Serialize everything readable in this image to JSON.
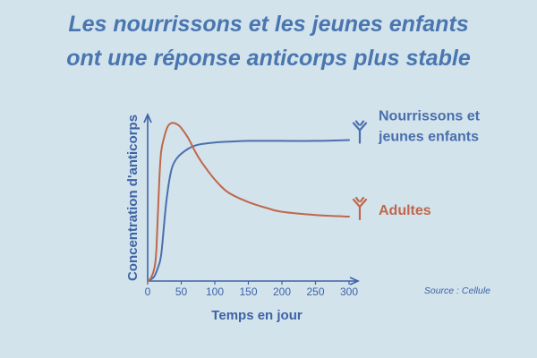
{
  "colors": {
    "background": "#d2e3ec",
    "title": "#4a76b0",
    "axis": "#3e63a6",
    "infants": "#4a6fae",
    "adults": "#c0674a"
  },
  "title_lines": [
    "Les nourrissons et les jeunes enfants",
    "ont une réponse anticorps plus stable"
  ],
  "source": "Source : Cellule",
  "legend_icon": "antibody-icon",
  "chart_data": {
    "type": "line",
    "xlabel": "Temps en jour",
    "ylabel": "Concentration d'anticorps",
    "xlim": [
      0,
      320
    ],
    "ylim": [
      0,
      1
    ],
    "x_ticks": [
      0,
      50,
      100,
      150,
      200,
      250,
      300
    ],
    "grid": false,
    "legend_placement": "right, at line ends",
    "series": [
      {
        "name": "Nourrissons et jeunes enfants",
        "label_lines": [
          "Nourrissons et",
          "jeunes enfants"
        ],
        "color": "#4a6fae",
        "x": [
          0,
          5,
          10,
          15,
          20,
          25,
          28,
          32,
          36,
          40,
          45,
          50,
          60,
          70,
          80,
          100,
          120,
          150,
          200,
          250,
          300
        ],
        "y": [
          0.0,
          0.01,
          0.03,
          0.08,
          0.16,
          0.38,
          0.5,
          0.62,
          0.7,
          0.74,
          0.77,
          0.79,
          0.82,
          0.84,
          0.85,
          0.86,
          0.865,
          0.87,
          0.87,
          0.87,
          0.875
        ]
      },
      {
        "name": "Adultes",
        "label_lines": [
          "Adultes"
        ],
        "color": "#c0674a",
        "x": [
          0,
          5,
          10,
          13,
          17,
          20,
          25,
          30,
          35,
          40,
          45,
          50,
          60,
          70,
          80,
          100,
          120,
          150,
          180,
          200,
          250,
          300
        ],
        "y": [
          0.0,
          0.02,
          0.08,
          0.2,
          0.6,
          0.8,
          0.9,
          0.96,
          0.98,
          0.98,
          0.97,
          0.95,
          0.89,
          0.81,
          0.74,
          0.63,
          0.55,
          0.49,
          0.45,
          0.43,
          0.41,
          0.4
        ]
      }
    ]
  }
}
